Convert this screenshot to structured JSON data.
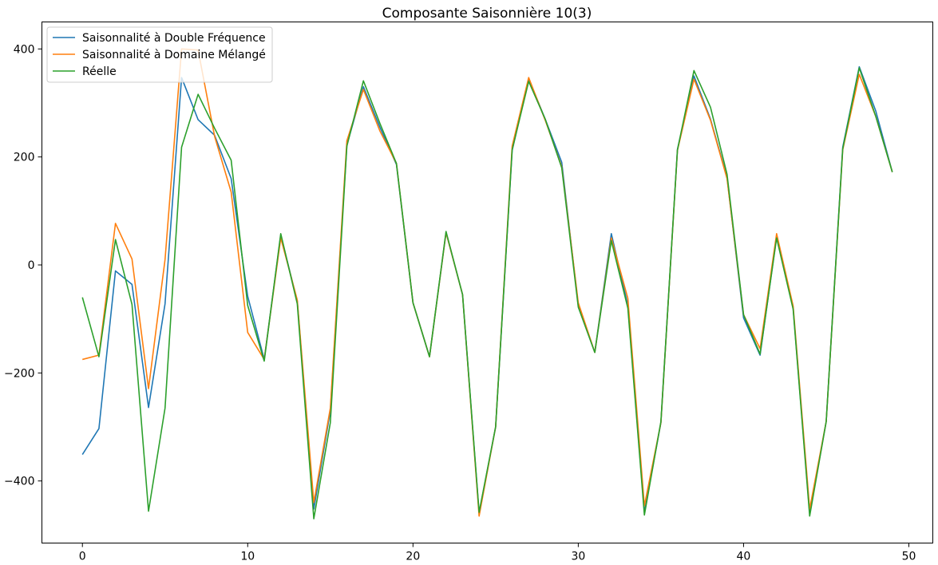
{
  "chart_data": {
    "type": "line",
    "title": "Composante Saisonnière 10(3)",
    "xlabel": "",
    "ylabel": "",
    "xlim": [
      -2.45,
      51.45
    ],
    "ylim": [
      -515,
      450
    ],
    "x_ticks": [
      0,
      10,
      20,
      30,
      40,
      50
    ],
    "y_ticks": [
      -400,
      -200,
      0,
      200,
      400
    ],
    "x_tick_labels": [
      "0",
      "10",
      "20",
      "30",
      "40",
      "50"
    ],
    "y_tick_labels": [
      "−400",
      "−200",
      "0",
      "200",
      "400"
    ],
    "grid": false,
    "legend_position": "top-left",
    "x": [
      0,
      1,
      2,
      3,
      4,
      5,
      6,
      7,
      8,
      9,
      10,
      11,
      12,
      13,
      14,
      15,
      16,
      17,
      18,
      19,
      20,
      21,
      22,
      23,
      24,
      25,
      26,
      27,
      28,
      29,
      30,
      31,
      32,
      33,
      34,
      35,
      36,
      37,
      38,
      39,
      40,
      41,
      42,
      43,
      44,
      45,
      46,
      47,
      48,
      49
    ],
    "series": [
      {
        "name": "Saisonnalité à Double Fréquence",
        "color": "#1f77b4",
        "values": [
          -351,
          -303,
          -11,
          -36,
          -264,
          -72,
          347,
          269,
          240,
          160,
          -58,
          -175,
          55,
          -67,
          -452,
          -270,
          222,
          330,
          255,
          186,
          -70,
          -170,
          60,
          -55,
          -460,
          -300,
          212,
          345,
          270,
          190,
          -75,
          -162,
          58,
          -75,
          -458,
          -292,
          214,
          350,
          270,
          162,
          -98,
          -167,
          52,
          -80,
          -460,
          -290,
          218,
          367,
          285,
          172
        ]
      },
      {
        "name": "Saisonnalité à Domaine Mélangé",
        "color": "#ff7f0e",
        "values": [
          -175,
          -167,
          77,
          11,
          -229,
          10,
          400,
          398,
          238,
          135,
          -125,
          -175,
          50,
          -65,
          -440,
          -265,
          230,
          325,
          248,
          188,
          -70,
          -170,
          60,
          -55,
          -465,
          -300,
          220,
          347,
          268,
          182,
          -70,
          -162,
          50,
          -62,
          -446,
          -292,
          212,
          344,
          268,
          160,
          -92,
          -155,
          58,
          -76,
          -452,
          -290,
          213,
          353,
          275,
          172
        ]
      },
      {
        "name": "Réelle",
        "color": "#2ca02c",
        "values": [
          -60,
          -170,
          47,
          -73,
          -456,
          -265,
          218,
          316,
          253,
          194,
          -75,
          -178,
          58,
          -72,
          -470,
          -292,
          220,
          341,
          262,
          188,
          -70,
          -170,
          62,
          -55,
          -458,
          -300,
          213,
          340,
          270,
          180,
          -78,
          -162,
          45,
          -80,
          -463,
          -290,
          213,
          360,
          292,
          168,
          -92,
          -165,
          50,
          -82,
          -465,
          -290,
          215,
          365,
          275,
          172
        ]
      }
    ]
  }
}
